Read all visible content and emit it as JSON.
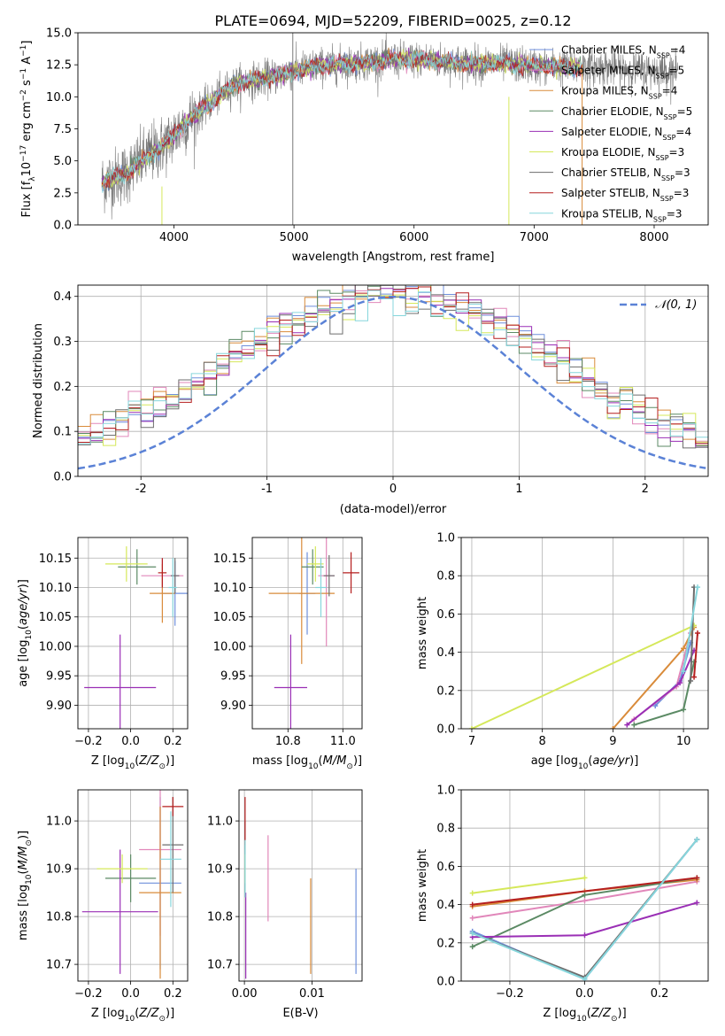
{
  "figure": {
    "title": "PLATE=0694, MJD=52209, FIBERID=0025, z=0.12"
  },
  "colors": {
    "Chabrier MILES": "#6f8fdc",
    "Salpeter MILES": "#e187ba",
    "Kroupa MILES": "#d98b3a",
    "Chabrier ELODIE": "#5b8a64",
    "Salpeter ELODIE": "#9a2fb5",
    "Kroupa ELODIE": "#d5e85a",
    "Chabrier STELIB": "#6d6d6d",
    "Salpeter STELIB": "#b51f1f",
    "Kroupa STELIB": "#86d6dc",
    "normal_curve": "#5b82d6",
    "grid": "#b0b0b0"
  },
  "chart_data": [
    {
      "id": "spectrum",
      "type": "line",
      "xlabel": "wavelength [Angstrom, rest frame]",
      "ylabel": "Flux [f_λ 10^-17 erg cm^-2 s^-1 A^-1]",
      "xlim": [
        3200,
        8450
      ],
      "ylim": [
        0,
        15
      ],
      "xticks": [
        4000,
        5000,
        6000,
        7000,
        8000
      ],
      "yticks": [
        "0.0",
        "2.5",
        "5.0",
        "7.5",
        "10.0",
        "12.5",
        "15.0"
      ],
      "grid": false,
      "legend_position": "right",
      "legend": [
        {
          "base": "Chabrier MILES, N",
          "sub": "SSP",
          "tail": "=4"
        },
        {
          "base": "Salpeter MILES, N",
          "sub": "SSP",
          "tail": "=5"
        },
        {
          "base": "Kroupa MILES, N",
          "sub": "SSP",
          "tail": "=4"
        },
        {
          "base": "Chabrier ELODIE, N",
          "sub": "SSP",
          "tail": "=5"
        },
        {
          "base": "Salpeter ELODIE, N",
          "sub": "SSP",
          "tail": "=4"
        },
        {
          "base": "Kroupa ELODIE, N",
          "sub": "SSP",
          "tail": "=3"
        },
        {
          "base": "Chabrier STELIB, N",
          "sub": "SSP",
          "tail": "=3"
        },
        {
          "base": "Salpeter STELIB, N",
          "sub": "SSP",
          "tail": "=3"
        },
        {
          "base": "Kroupa STELIB, N",
          "sub": "SSP",
          "tail": "=3"
        }
      ],
      "continuum": {
        "x": [
          3400,
          3600,
          3800,
          3950,
          4100,
          4300,
          4500,
          4800,
          5000,
          5200,
          5500,
          5800,
          6100,
          6400,
          6700,
          7000,
          7300,
          7600,
          7900,
          8200
        ],
        "y": [
          3.3,
          4.0,
          5.5,
          6.5,
          8.0,
          9.5,
          11.0,
          11.5,
          12.0,
          12.4,
          12.6,
          12.9,
          12.9,
          12.6,
          12.6,
          12.4,
          12.3,
          12.3,
          12.1,
          12.0
        ]
      },
      "data_range": [
        3400,
        8200
      ],
      "model_range": [
        3400,
        7400
      ]
    },
    {
      "id": "residuals",
      "type": "bar",
      "xlabel": "(data-model)/error",
      "ylabel": "Normed distribution",
      "xlim": [
        -2.5,
        2.5
      ],
      "ylim": [
        0,
        0.425
      ],
      "xticks": [
        -2,
        -1,
        0,
        1,
        2
      ],
      "yticks": [
        "0.0",
        "0.1",
        "0.2",
        "0.3",
        "0.4"
      ],
      "grid": true,
      "legend_position": "top-right",
      "legend": "𝒩(0, 1)",
      "bin_width": 0.1,
      "normal": {
        "mu": 0,
        "sigma": 1
      }
    },
    {
      "id": "age-vs-Z",
      "type": "scatter",
      "xlabel": "Z [log10(Z/Z☉)]",
      "ylabel": "age  [log10(age/yr)]",
      "xlim": [
        -0.25,
        0.27
      ],
      "ylim": [
        9.86,
        10.185
      ],
      "xticks": [
        "−0.2",
        "0.0",
        "0.2"
      ],
      "yticks": [
        "9.90",
        "9.95",
        "10.00",
        "10.05",
        "10.10",
        "10.15"
      ],
      "grid": true,
      "points": [
        {
          "model": "Chabrier MILES",
          "x": 0.21,
          "xerr": 0.06,
          "y": 10.09,
          "yerr": 0.055
        },
        {
          "model": "Salpeter MILES",
          "x": 0.15,
          "xerr": 0.1,
          "y": 10.12,
          "yerr": 0.03
        },
        {
          "model": "Kroupa MILES",
          "x": 0.15,
          "xerr": 0.06,
          "y": 10.09,
          "yerr": 0.05
        },
        {
          "model": "Chabrier ELODIE",
          "x": 0.03,
          "xerr": 0.09,
          "y": 10.135,
          "yerr": 0.03
        },
        {
          "model": "Salpeter ELODIE",
          "x": -0.05,
          "xerr": 0.17,
          "y": 9.93,
          "yerr": 0.09
        },
        {
          "model": "Kroupa ELODIE",
          "x": -0.02,
          "xerr": 0.1,
          "y": 10.14,
          "yerr": 0.03
        },
        {
          "model": "Chabrier STELIB",
          "x": 0.21,
          "xerr": 0.02,
          "y": 10.12,
          "yerr": 0.03
        },
        {
          "model": "Salpeter STELIB",
          "x": 0.15,
          "xerr": 0.02,
          "y": 10.125,
          "yerr": 0.025
        },
        {
          "model": "Kroupa STELIB",
          "x": 0.2,
          "xerr": 0.02,
          "y": 10.1,
          "yerr": 0.05
        }
      ]
    },
    {
      "id": "age-vs-mass",
      "type": "scatter",
      "xlabel": "mass [log10(M/M☉)]",
      "ylabel": "",
      "xlim": [
        10.67,
        11.07
      ],
      "ylim": [
        9.86,
        10.185
      ],
      "xticks": [
        "10.8",
        "11.0"
      ],
      "yticks": [
        "9.90",
        "9.95",
        "10.00",
        "10.05",
        "10.10",
        "10.15"
      ],
      "grid": true,
      "points": [
        {
          "model": "Chabrier MILES",
          "x": 10.87,
          "xerr": 0.03,
          "y": 10.09,
          "yerr": 0.07
        },
        {
          "model": "Salpeter MILES",
          "x": 10.94,
          "xerr": 0.03,
          "y": 10.12,
          "yerr": 0.12
        },
        {
          "model": "Kroupa MILES",
          "x": 10.85,
          "xerr": 0.12,
          "y": 10.09,
          "yerr": 0.12
        },
        {
          "model": "Chabrier ELODIE",
          "x": 10.89,
          "xerr": 0.04,
          "y": 10.135,
          "yerr": 0.03
        },
        {
          "model": "Salpeter ELODIE",
          "x": 10.81,
          "xerr": 0.06,
          "y": 9.93,
          "yerr": 0.09
        },
        {
          "model": "Kroupa ELODIE",
          "x": 10.9,
          "xerr": 0.03,
          "y": 10.14,
          "yerr": 0.03
        },
        {
          "model": "Chabrier STELIB",
          "x": 10.95,
          "xerr": 0.02,
          "y": 10.12,
          "yerr": 0.035
        },
        {
          "model": "Salpeter STELIB",
          "x": 11.03,
          "xerr": 0.03,
          "y": 10.125,
          "yerr": 0.035
        },
        {
          "model": "Kroupa STELIB",
          "x": 10.92,
          "xerr": 0.02,
          "y": 10.1,
          "yerr": 0.05
        }
      ]
    },
    {
      "id": "weight-vs-age",
      "type": "line",
      "xlabel": "age  [log10(age/yr)]",
      "ylabel": "mass weight",
      "xlim": [
        6.85,
        10.35
      ],
      "ylim": [
        0,
        1.0
      ],
      "xticks": [
        "7",
        "8",
        "9",
        "10"
      ],
      "yticks": [
        "0.0",
        "0.2",
        "0.4",
        "0.6",
        "0.8",
        "1.0"
      ],
      "grid": true,
      "series": [
        {
          "model": "Chabrier MILES",
          "x": [
            9.6,
            9.95,
            10.1
          ],
          "y": [
            0.12,
            0.25,
            0.45
          ]
        },
        {
          "model": "Salpeter MILES",
          "x": [
            9.3,
            9.9,
            10.1
          ],
          "y": [
            0.05,
            0.22,
            0.5
          ]
        },
        {
          "model": "Kroupa MILES",
          "x": [
            9.0,
            10.0,
            10.15
          ],
          "y": [
            0.0,
            0.42,
            0.53
          ]
        },
        {
          "model": "Chabrier ELODIE",
          "x": [
            9.3,
            10.0,
            10.15
          ],
          "y": [
            0.02,
            0.1,
            0.35
          ]
        },
        {
          "model": "Salpeter ELODIE",
          "x": [
            9.2,
            9.95,
            10.15
          ],
          "y": [
            0.02,
            0.24,
            0.41
          ]
        },
        {
          "model": "Kroupa ELODIE",
          "x": [
            7.0,
            10.15
          ],
          "y": [
            0.0,
            0.54
          ]
        },
        {
          "model": "Chabrier STELIB",
          "x": [
            10.1,
            10.15
          ],
          "y": [
            0.25,
            0.74
          ]
        },
        {
          "model": "Salpeter STELIB",
          "x": [
            10.15,
            10.2
          ],
          "y": [
            0.27,
            0.5
          ]
        },
        {
          "model": "Kroupa STELIB",
          "x": [
            10.0,
            10.2
          ],
          "y": [
            0.3,
            0.74
          ]
        }
      ]
    },
    {
      "id": "mass-vs-Z",
      "type": "scatter",
      "xlabel": "Z [log10(Z/Z☉)]",
      "ylabel": "mass [log10(M/M☉)]",
      "xlim": [
        -0.25,
        0.27
      ],
      "ylim": [
        10.665,
        11.065
      ],
      "xticks": [
        "−0.2",
        "0.0",
        "0.2"
      ],
      "yticks": [
        "10.7",
        "10.8",
        "10.9",
        "11.0"
      ],
      "grid": true,
      "points": [
        {
          "model": "Chabrier MILES",
          "x": 0.14,
          "xerr": 0.1,
          "y": 10.87,
          "yerr": 0.18
        },
        {
          "model": "Salpeter MILES",
          "x": 0.14,
          "xerr": 0.1,
          "y": 10.94,
          "yerr": 0.18
        },
        {
          "model": "Kroupa MILES",
          "x": 0.14,
          "xerr": 0.1,
          "y": 10.85,
          "yerr": 0.18
        },
        {
          "model": "Chabrier ELODIE",
          "x": 0.0,
          "xerr": 0.12,
          "y": 10.88,
          "yerr": 0.05
        },
        {
          "model": "Salpeter ELODIE",
          "x": -0.05,
          "xerr": 0.18,
          "y": 10.81,
          "yerr": 0.13
        },
        {
          "model": "Kroupa ELODIE",
          "x": -0.04,
          "xerr": 0.12,
          "y": 10.9,
          "yerr": 0.03
        },
        {
          "model": "Chabrier STELIB",
          "x": 0.2,
          "xerr": 0.05,
          "y": 10.95,
          "yerr": 0.1
        },
        {
          "model": "Salpeter STELIB",
          "x": 0.2,
          "xerr": 0.05,
          "y": 11.03,
          "yerr": 0.02
        },
        {
          "model": "Kroupa STELIB",
          "x": 0.19,
          "xerr": 0.05,
          "y": 10.92,
          "yerr": 0.1
        }
      ]
    },
    {
      "id": "mass-vs-ebv",
      "type": "scatter",
      "xlabel": "E(B-V)",
      "ylabel": "",
      "xlim": [
        -0.0008,
        0.0174
      ],
      "ylim": [
        10.665,
        11.065
      ],
      "xticks": [
        "0.00",
        "0.01"
      ],
      "yticks": [
        "10.7",
        "10.8",
        "10.9",
        "11.0"
      ],
      "grid": true,
      "points": [
        {
          "model": "Chabrier MILES",
          "x": 0.0165,
          "y": 10.79,
          "yerr": 0.11
        },
        {
          "model": "Salpeter MILES",
          "x": 0.0035,
          "y": 10.88,
          "yerr": 0.09
        },
        {
          "model": "Kroupa MILES",
          "x": 0.0098,
          "y": 10.78,
          "yerr": 0.1
        },
        {
          "model": "Chabrier ELODIE",
          "x": 0.0001,
          "y": 10.9,
          "yerr": 0.05
        },
        {
          "model": "Salpeter ELODIE",
          "x": 0.0002,
          "y": 10.76,
          "yerr": 0.09
        },
        {
          "model": "Kroupa ELODIE",
          "x": 0.0001,
          "y": 10.9,
          "yerr": 0.03
        },
        {
          "model": "Chabrier STELIB",
          "x": 0.0001,
          "y": 10.97,
          "yerr": 0.03
        },
        {
          "model": "Salpeter STELIB",
          "x": 0.0001,
          "y": 11.0,
          "yerr": 0.05
        },
        {
          "model": "Kroupa STELIB",
          "x": 0.0001,
          "y": 10.9,
          "yerr": 0.06
        }
      ]
    },
    {
      "id": "weight-vs-Z",
      "type": "line",
      "xlabel": "Z [log10(Z/Z☉)]",
      "ylabel": "mass weight",
      "xlim": [
        -0.33,
        0.33
      ],
      "ylim": [
        0,
        1.0
      ],
      "xticks": [
        "−0.2",
        "0.0",
        "0.2"
      ],
      "yticks": [
        "0.0",
        "0.2",
        "0.4",
        "0.6",
        "0.8",
        "1.0"
      ],
      "grid": true,
      "series": [
        {
          "model": "Chabrier MILES",
          "x": [
            -0.3,
            0.0,
            0.3
          ],
          "y": [
            0.26,
            0.01,
            0.74
          ]
        },
        {
          "model": "Salpeter MILES",
          "x": [
            -0.3,
            0.0,
            0.3
          ],
          "y": [
            0.33,
            0.42,
            0.52
          ]
        },
        {
          "model": "Kroupa MILES",
          "x": [
            -0.3,
            0.0,
            0.3
          ],
          "y": [
            0.39,
            0.47,
            0.53
          ]
        },
        {
          "model": "Chabrier ELODIE",
          "x": [
            -0.3,
            0.0,
            0.3
          ],
          "y": [
            0.18,
            0.45,
            0.54
          ]
        },
        {
          "model": "Salpeter ELODIE",
          "x": [
            -0.3,
            0.0,
            0.3
          ],
          "y": [
            0.23,
            0.24,
            0.41
          ]
        },
        {
          "model": "Kroupa ELODIE",
          "x": [
            -0.3,
            0.0
          ],
          "y": [
            0.46,
            0.54
          ]
        },
        {
          "model": "Chabrier STELIB",
          "x": [
            -0.3,
            0.0,
            0.3
          ],
          "y": [
            0.25,
            0.02,
            0.74
          ]
        },
        {
          "model": "Salpeter STELIB",
          "x": [
            -0.3,
            0.3
          ],
          "y": [
            0.4,
            0.54
          ]
        },
        {
          "model": "Kroupa STELIB",
          "x": [
            -0.3,
            0.0,
            0.3
          ],
          "y": [
            0.25,
            0.01,
            0.74
          ]
        }
      ]
    }
  ]
}
